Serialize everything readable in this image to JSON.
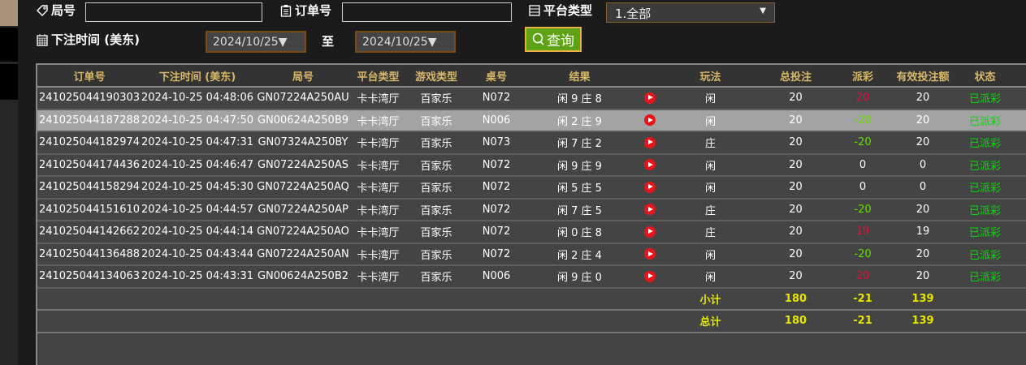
{
  "filters": {
    "round_label": "局号",
    "round_value": "",
    "order_label": "订单号",
    "order_value": "",
    "platform_label": "平台类型",
    "platform_selected": "1.全部",
    "time_label": "下注时间 (美东)",
    "date_from": "2024/10/25▼",
    "to_label": "至",
    "date_to": "2024/10/25▼",
    "query_label": "查询"
  },
  "table": {
    "headers": [
      "订单号",
      "下注时间 (美东)",
      "局号",
      "平台类型",
      "游戏类型",
      "桌号",
      "结果",
      "",
      "玩法",
      "总投注",
      "派彩",
      "有效投注额",
      "状态"
    ],
    "rows": [
      [
        "241025044190303",
        "2024-10-25 04:48:06",
        "GN07224A250AU",
        "卡卡湾厅",
        "百家乐",
        "N072",
        "闲 9 庄 8",
        "闲",
        "20",
        "20",
        "20",
        "已派彩"
      ],
      [
        "241025044187288",
        "2024-10-25 04:47:50",
        "GN00624A250B9",
        "卡卡湾厅",
        "百家乐",
        "N006",
        "闲 2 庄 9",
        "闲",
        "20",
        "-20",
        "20",
        "已派彩"
      ],
      [
        "241025044182974",
        "2024-10-25 04:47:31",
        "GN07324A250BY",
        "卡卡湾厅",
        "百家乐",
        "N073",
        "闲 7 庄 2",
        "庄",
        "20",
        "-20",
        "20",
        "已派彩"
      ],
      [
        "241025044174436",
        "2024-10-25 04:46:47",
        "GN07224A250AS",
        "卡卡湾厅",
        "百家乐",
        "N072",
        "闲 9 庄 9",
        "闲",
        "20",
        "0",
        "0",
        "已派彩"
      ],
      [
        "241025044158294",
        "2024-10-25 04:45:30",
        "GN07224A250AQ",
        "卡卡湾厅",
        "百家乐",
        "N072",
        "闲 5 庄 5",
        "闲",
        "20",
        "0",
        "0",
        "已派彩"
      ],
      [
        "241025044151610",
        "2024-10-25 04:44:57",
        "GN07224A250AP",
        "卡卡湾厅",
        "百家乐",
        "N072",
        "闲 7 庄 5",
        "庄",
        "20",
        "-20",
        "20",
        "已派彩"
      ],
      [
        "241025044142662",
        "2024-10-25 04:44:14",
        "GN07224A250AO",
        "卡卡湾厅",
        "百家乐",
        "N072",
        "闲 0 庄 8",
        "庄",
        "20",
        "19",
        "19",
        "已派彩"
      ],
      [
        "241025044136488",
        "2024-10-25 04:43:44",
        "GN07224A250AN",
        "卡卡湾厅",
        "百家乐",
        "N072",
        "闲 2 庄 4",
        "闲",
        "20",
        "-20",
        "20",
        "已派彩"
      ],
      [
        "241025044134063",
        "2024-10-25 04:43:31",
        "GN00624A250B2",
        "卡卡湾厅",
        "百家乐",
        "N006",
        "闲 9 庄 0",
        "闲",
        "20",
        "20",
        "20",
        "已派彩"
      ]
    ],
    "selected_row": 1,
    "subtotal": {
      "label": "小计",
      "total_bet": "180",
      "payout": "-21",
      "valid_bet": "139"
    },
    "total": {
      "label": "总计",
      "total_bet": "180",
      "payout": "-21",
      "valid_bet": "139"
    }
  },
  "colors": {
    "win": "#e0103a",
    "loss": "#66dd00",
    "status": "#00dd00",
    "header": "#d8b86a",
    "sum": "#e6e600",
    "accent": "#5ea315"
  }
}
